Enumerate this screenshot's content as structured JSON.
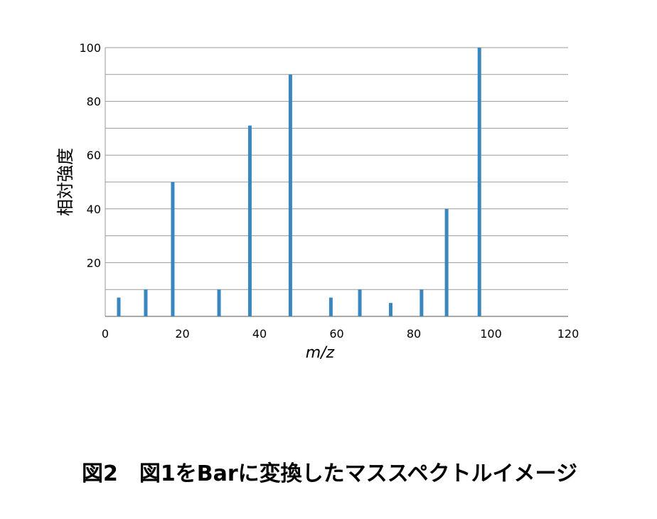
{
  "chart_data": {
    "type": "bar",
    "caption": "図2　図1をBarに変換したマススペクトルイメージ",
    "x_label": "m/z",
    "y_label": "相対強度",
    "color": "#3a87c0",
    "x": [
      3.5,
      10.5,
      17.5,
      29.5,
      37.5,
      48,
      58.5,
      66,
      74,
      82,
      88.5,
      97
    ],
    "values": [
      7,
      10,
      50,
      10,
      71,
      90,
      7,
      10,
      5,
      10,
      40,
      100
    ],
    "xlim": [
      0,
      120
    ],
    "xticks": [
      0,
      20,
      40,
      60,
      80,
      100,
      120
    ],
    "ylim": [
      0,
      100
    ],
    "yticks": [
      20,
      40,
      60,
      80,
      100
    ],
    "minor_yticks": [
      10,
      30,
      50,
      70,
      90
    ],
    "grid": true
  }
}
